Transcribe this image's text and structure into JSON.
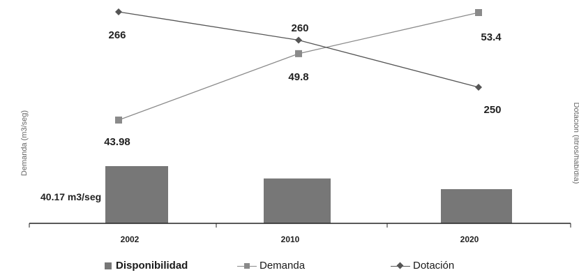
{
  "chart_data": {
    "type": "bar+line",
    "categories": [
      "2002",
      "2010",
      "2020"
    ],
    "series": [
      {
        "name": "Disponibilidad",
        "kind": "bar",
        "values": [
          40.17,
          31.5,
          24.0
        ],
        "color": "#777777"
      },
      {
        "name": "Demanda",
        "kind": "line",
        "marker": "square",
        "values": [
          43.98,
          49.8,
          53.4
        ],
        "color": "#8a8a8a"
      },
      {
        "name": "Dotación",
        "kind": "line",
        "marker": "diamond",
        "values": [
          266,
          260,
          250
        ],
        "color": "#555555"
      }
    ],
    "data_labels": {
      "Disponibilidad": [
        "40.17 m3/seg",
        "",
        ""
      ],
      "Demanda": [
        "43.98",
        "49.8",
        "53.4"
      ],
      "Dotación": [
        "266",
        "260",
        "250"
      ]
    },
    "ylabel_left": "Demanda (m3/seg)",
    "ylabel_right": "Dotación (litros/hab/día)",
    "legend_position": "bottom"
  }
}
